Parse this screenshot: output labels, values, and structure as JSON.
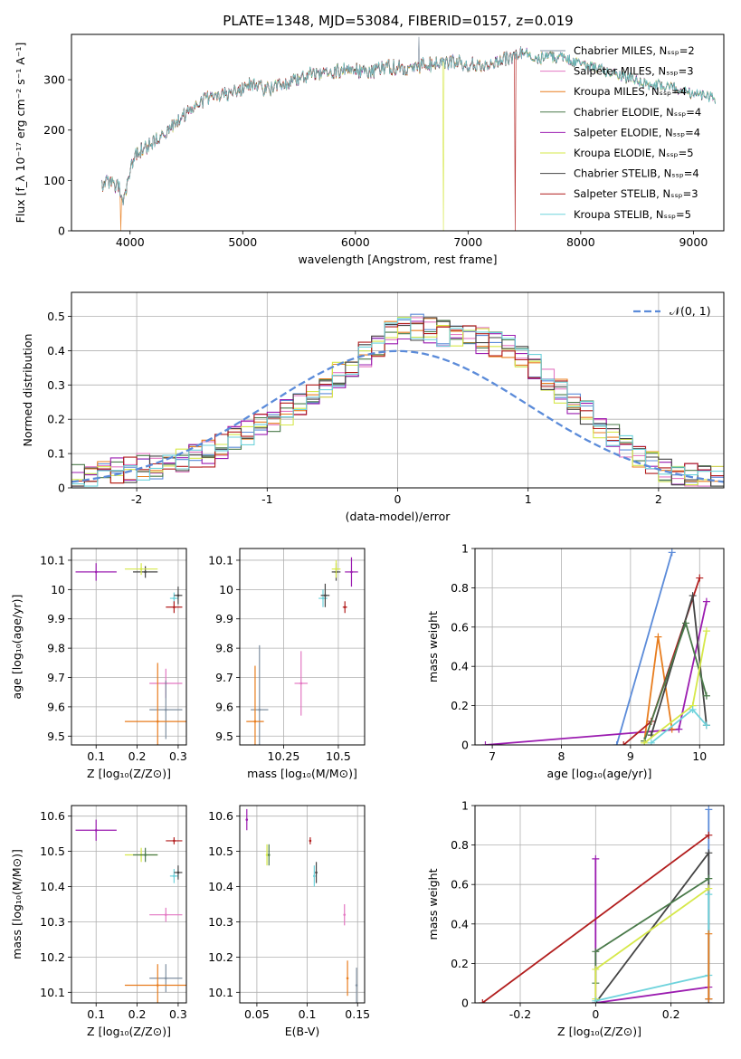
{
  "figure": {
    "title": "PLATE=1348, MJD=53084, FIBERID=0157, z=0.019"
  },
  "series_colors": [
    "#7f8fa0",
    "#e377c2",
    "#e87d1e",
    "#4a7a4a",
    "#9b1cb0",
    "#d6e84a",
    "#444444",
    "#b21e1e",
    "#6ed3dc"
  ],
  "norm_color": "#5b8bd9",
  "chart_data": [
    {
      "type": "line",
      "panel": "spectrum",
      "xlabel": "wavelength [Angstrom, rest frame]",
      "ylabel": "Flux [f_λ 10⁻¹⁷ erg cm⁻² s⁻¹ A⁻¹]",
      "xlim": [
        3480,
        9270
      ],
      "ylim": [
        0,
        390
      ],
      "xticks": [
        4000,
        5000,
        6000,
        7000,
        8000,
        9000
      ],
      "yticks": [
        0,
        100,
        200,
        300
      ],
      "grid": false,
      "legend_position": "right",
      "legend": [
        "Chabrier MILES, Nₛₛₚ=2",
        "Salpeter MILES, Nₛₛₚ=3",
        "Kroupa MILES, Nₛₛₚ=4",
        "Chabrier ELODIE, Nₛₛₚ=4",
        "Salpeter ELODIE, Nₛₛₚ=4",
        "Kroupa ELODIE, Nₛₛₚ=5",
        "Chabrier STELIB, Nₛₛₚ=4",
        "Salpeter STELIB, Nₛₛₚ=3",
        "Kroupa STELIB, Nₛₛₚ=5"
      ],
      "continuum": {
        "x": [
          3750,
          3800,
          3900,
          3950,
          4000,
          4050,
          4100,
          4200,
          4300,
          4400,
          4500,
          4600,
          4700,
          4800,
          4900,
          5000,
          5100,
          5200,
          5300,
          5400,
          5500,
          5600,
          5700,
          5800,
          5900,
          6000,
          6100,
          6200,
          6300,
          6400,
          6500,
          6600,
          6700,
          6800,
          6900,
          7000,
          7100,
          7200,
          7300,
          7400,
          7500,
          7600,
          7700,
          7800,
          7900,
          8000,
          8100,
          8200,
          8300,
          8400,
          8500,
          8600,
          8700,
          8800,
          8900,
          9000,
          9100,
          9200
        ],
        "y": [
          90,
          100,
          85,
          60,
          120,
          150,
          160,
          175,
          190,
          215,
          235,
          250,
          265,
          270,
          275,
          280,
          295,
          280,
          285,
          295,
          300,
          310,
          310,
          315,
          320,
          320,
          310,
          320,
          325,
          325,
          320,
          330,
          330,
          335,
          335,
          330,
          330,
          335,
          340,
          345,
          355,
          340,
          345,
          345,
          340,
          330,
          325,
          320,
          310,
          305,
          300,
          290,
          290,
          285,
          280,
          270,
          270,
          260
        ]
      },
      "features": [
        {
          "name": "H-alpha emission",
          "x": 6563,
          "y": 385
        },
        {
          "name": "drop Kroupa ELODIE",
          "x": 6780,
          "y": 0
        },
        {
          "name": "drop Salpeter STELIB",
          "x": 7420,
          "y": 0
        },
        {
          "name": "drop Kroupa MILES",
          "x": 3920,
          "y": 0
        }
      ]
    },
    {
      "type": "histogram",
      "panel": "residuals",
      "xlabel": "(data-model)/error",
      "ylabel": "Normed distribution",
      "xlim": [
        -2.5,
        2.5
      ],
      "ylim": [
        0,
        0.57
      ],
      "xticks": [
        -2,
        -1,
        0,
        1,
        2
      ],
      "yticks": [
        0.0,
        0.1,
        0.2,
        0.3,
        0.4,
        0.5
      ],
      "grid": true,
      "legend": [
        "𝒩(0, 1)"
      ],
      "legend_position": "top-right",
      "bin_width": 0.1,
      "envelope": [
        0.03,
        0.04,
        0.045,
        0.05,
        0.055,
        0.06,
        0.065,
        0.07,
        0.08,
        0.09,
        0.1,
        0.12,
        0.14,
        0.16,
        0.18,
        0.2,
        0.22,
        0.25,
        0.28,
        0.3,
        0.33,
        0.36,
        0.39,
        0.42,
        0.45,
        0.47,
        0.47,
        0.46,
        0.45,
        0.44,
        0.44,
        0.43,
        0.42,
        0.41,
        0.38,
        0.35,
        0.32,
        0.28,
        0.25,
        0.22,
        0.18,
        0.15,
        0.12,
        0.09,
        0.07,
        0.05,
        0.04,
        0.035,
        0.03,
        0.025
      ],
      "normal_curve": {
        "mean": 0,
        "sigma": 1,
        "peak": 0.399
      }
    },
    {
      "type": "scatter",
      "panel": "Z-age",
      "xlabel": "Z [log₁₀(Z/Z⊙)]",
      "ylabel": "age  [log₁₀(age/yr)]",
      "xlim": [
        0.04,
        0.32
      ],
      "ylim": [
        9.47,
        10.14
      ],
      "xticks": [
        0.1,
        0.2,
        0.3
      ],
      "yticks": [
        9.5,
        9.6,
        9.7,
        9.8,
        9.9,
        10.0,
        10.1
      ],
      "grid": true,
      "points": [
        {
          "x": 0.1,
          "y": 10.06,
          "xerr": 0.05,
          "yerr": 0.03,
          "c": 4
        },
        {
          "x": 0.22,
          "y": 10.06,
          "xerr": 0.03,
          "yerr": 0.02,
          "c": 6
        },
        {
          "x": 0.21,
          "y": 10.07,
          "xerr": 0.04,
          "yerr": 0.02,
          "c": 5
        },
        {
          "x": 0.29,
          "y": 9.97,
          "xerr": 0.01,
          "yerr": 0.02,
          "c": 8
        },
        {
          "x": 0.3,
          "y": 9.98,
          "xerr": 0.01,
          "yerr": 0.03,
          "c": 6
        },
        {
          "x": 0.29,
          "y": 9.94,
          "xerr": 0.02,
          "yerr": 0.02,
          "c": 7
        },
        {
          "x": 0.27,
          "y": 9.68,
          "xerr": 0.04,
          "yerr": 0.05,
          "c": 1
        },
        {
          "x": 0.27,
          "y": 9.59,
          "xerr": 0.04,
          "yerr": 0.1,
          "c": 0
        },
        {
          "x": 0.25,
          "y": 9.55,
          "xerr": 0.08,
          "yerr": 0.2,
          "c": 2
        }
      ]
    },
    {
      "type": "scatter",
      "panel": "mass-age",
      "xlabel": "mass [log₁₀(M/M⊙)]",
      "ylabel": "",
      "xlim": [
        10.05,
        10.62
      ],
      "ylim": [
        9.47,
        10.14
      ],
      "xticks": [
        10.25,
        10.5
      ],
      "yticks": [
        9.5,
        9.6,
        9.7,
        9.8,
        9.9,
        10.0,
        10.1
      ],
      "grid": true,
      "points": [
        {
          "x": 10.56,
          "y": 10.06,
          "xerr": 0.03,
          "yerr": 0.05,
          "c": 4
        },
        {
          "x": 10.49,
          "y": 10.06,
          "xerr": 0.02,
          "yerr": 0.03,
          "c": 6
        },
        {
          "x": 10.49,
          "y": 10.07,
          "xerr": 0.02,
          "yerr": 0.03,
          "c": 5
        },
        {
          "x": 10.43,
          "y": 9.97,
          "xerr": 0.02,
          "yerr": 0.03,
          "c": 8
        },
        {
          "x": 10.44,
          "y": 9.98,
          "xerr": 0.02,
          "yerr": 0.04,
          "c": 6
        },
        {
          "x": 10.53,
          "y": 9.94,
          "xerr": 0.01,
          "yerr": 0.02,
          "c": 7
        },
        {
          "x": 10.33,
          "y": 9.68,
          "xerr": 0.03,
          "yerr": 0.11,
          "c": 1
        },
        {
          "x": 10.14,
          "y": 9.59,
          "xerr": 0.04,
          "yerr": 0.22,
          "c": 0
        },
        {
          "x": 10.12,
          "y": 9.55,
          "xerr": 0.04,
          "yerr": 0.19,
          "c": 2
        }
      ]
    },
    {
      "type": "line",
      "panel": "age-weight",
      "xlabel": "age  [log₁₀(age/yr)]",
      "ylabel": "mass weight",
      "xlim": [
        6.75,
        10.35
      ],
      "ylim": [
        0,
        1
      ],
      "xticks": [
        7,
        8,
        9,
        10
      ],
      "yticks": [
        0.0,
        0.2,
        0.4,
        0.6,
        0.8,
        1.0
      ],
      "grid": true,
      "series": [
        {
          "c": 0,
          "x": [
            8.8,
            9.6
          ],
          "y": [
            0.0,
            0.98
          ]
        },
        {
          "c": 4,
          "x": [
            6.9,
            9.7,
            10.1
          ],
          "y": [
            0.0,
            0.08,
            0.73
          ]
        },
        {
          "c": 2,
          "x": [
            9.2,
            9.4,
            9.6
          ],
          "y": [
            0.02,
            0.55,
            0.08
          ]
        },
        {
          "c": 7,
          "x": [
            8.9,
            9.3,
            10.0
          ],
          "y": [
            0.0,
            0.12,
            0.85
          ]
        },
        {
          "c": 6,
          "x": [
            9.3,
            9.9,
            10.1
          ],
          "y": [
            0.05,
            0.76,
            0.1
          ]
        },
        {
          "c": 3,
          "x": [
            9.2,
            9.8,
            10.1
          ],
          "y": [
            0.02,
            0.62,
            0.25
          ]
        },
        {
          "c": 5,
          "x": [
            9.2,
            9.9,
            10.1
          ],
          "y": [
            0.01,
            0.2,
            0.58
          ]
        },
        {
          "c": 8,
          "x": [
            9.3,
            9.9,
            10.1
          ],
          "y": [
            0.01,
            0.18,
            0.1
          ]
        }
      ]
    },
    {
      "type": "scatter",
      "panel": "Z-mass",
      "xlabel": "Z [log₁₀(Z/Z⊙)]",
      "ylabel": "mass [log₁₀(M/M⊙)]",
      "xlim": [
        0.04,
        0.32
      ],
      "ylim": [
        10.07,
        10.63
      ],
      "xticks": [
        0.1,
        0.2,
        0.3
      ],
      "yticks": [
        10.1,
        10.2,
        10.3,
        10.4,
        10.5,
        10.6
      ],
      "grid": true,
      "points": [
        {
          "x": 0.1,
          "y": 10.56,
          "xerr": 0.05,
          "yerr": 0.03,
          "c": 4
        },
        {
          "x": 0.21,
          "y": 10.49,
          "xerr": 0.04,
          "yerr": 0.02,
          "c": 5
        },
        {
          "x": 0.22,
          "y": 10.49,
          "xerr": 0.03,
          "yerr": 0.02,
          "c": 3
        },
        {
          "x": 0.29,
          "y": 10.53,
          "xerr": 0.02,
          "yerr": 0.01,
          "c": 7
        },
        {
          "x": 0.29,
          "y": 10.43,
          "xerr": 0.01,
          "yerr": 0.02,
          "c": 8
        },
        {
          "x": 0.3,
          "y": 10.44,
          "xerr": 0.01,
          "yerr": 0.02,
          "c": 6
        },
        {
          "x": 0.27,
          "y": 10.32,
          "xerr": 0.04,
          "yerr": 0.02,
          "c": 1
        },
        {
          "x": 0.27,
          "y": 10.14,
          "xerr": 0.04,
          "yerr": 0.04,
          "c": 0
        },
        {
          "x": 0.25,
          "y": 10.12,
          "xerr": 0.08,
          "yerr": 0.06,
          "c": 2
        }
      ]
    },
    {
      "type": "scatter",
      "panel": "EBV-mass",
      "xlabel": "E(B-V)",
      "ylabel": "",
      "xlim": [
        0.033,
        0.157
      ],
      "ylim": [
        10.07,
        10.63
      ],
      "xticks": [
        0.05,
        0.1,
        0.15
      ],
      "yticks": [
        10.1,
        10.2,
        10.3,
        10.4,
        10.5,
        10.6
      ],
      "grid": true,
      "points": [
        {
          "x": 0.04,
          "y": 10.59,
          "xerr": 0,
          "yerr": 0.03,
          "c": 4
        },
        {
          "x": 0.06,
          "y": 10.49,
          "xerr": 0,
          "yerr": 0.03,
          "c": 5
        },
        {
          "x": 0.062,
          "y": 10.49,
          "xerr": 0,
          "yerr": 0.03,
          "c": 3
        },
        {
          "x": 0.103,
          "y": 10.53,
          "xerr": 0,
          "yerr": 0.01,
          "c": 7
        },
        {
          "x": 0.107,
          "y": 10.43,
          "xerr": 0,
          "yerr": 0.03,
          "c": 8
        },
        {
          "x": 0.109,
          "y": 10.44,
          "xerr": 0,
          "yerr": 0.03,
          "c": 6
        },
        {
          "x": 0.137,
          "y": 10.32,
          "xerr": 0,
          "yerr": 0.03,
          "c": 1
        },
        {
          "x": 0.14,
          "y": 10.14,
          "xerr": 0,
          "yerr": 0.05,
          "c": 2
        },
        {
          "x": 0.149,
          "y": 10.12,
          "xerr": 0,
          "yerr": 0.05,
          "c": 0
        }
      ]
    },
    {
      "type": "line",
      "panel": "Z-weight",
      "xlabel": "Z [log₁₀(Z/Z⊙)]",
      "ylabel": "mass weight",
      "xlim": [
        -0.32,
        0.34
      ],
      "ylim": [
        0,
        1
      ],
      "xticks": [
        -0.2,
        0.0,
        0.2
      ],
      "yticks": [
        0.0,
        0.2,
        0.4,
        0.6,
        0.8,
        1.0
      ],
      "grid": true,
      "series": [
        {
          "c": 0,
          "x": [
            0.3,
            0.3
          ],
          "y": [
            0.0,
            0.98
          ]
        },
        {
          "c": 4,
          "x": [
            0.0,
            0.0,
            0.3
          ],
          "y": [
            0.73,
            0.0,
            0.08
          ]
        },
        {
          "c": 7,
          "x": [
            -0.3,
            0.3
          ],
          "y": [
            0.0,
            0.85
          ]
        },
        {
          "c": 6,
          "x": [
            0.0,
            0.3,
            0.3
          ],
          "y": [
            0.0,
            0.76,
            0.02
          ]
        },
        {
          "c": 3,
          "x": [
            0.0,
            0.0,
            0.3
          ],
          "y": [
            0.1,
            0.26,
            0.63
          ]
        },
        {
          "c": 5,
          "x": [
            0.0,
            0.0,
            0.3
          ],
          "y": [
            0.02,
            0.17,
            0.58
          ]
        },
        {
          "c": 8,
          "x": [
            0.0,
            0.3,
            0.3
          ],
          "y": [
            0.01,
            0.14,
            0.55
          ]
        },
        {
          "c": 2,
          "x": [
            0.3,
            0.3
          ],
          "y": [
            0.02,
            0.35
          ]
        }
      ]
    }
  ]
}
